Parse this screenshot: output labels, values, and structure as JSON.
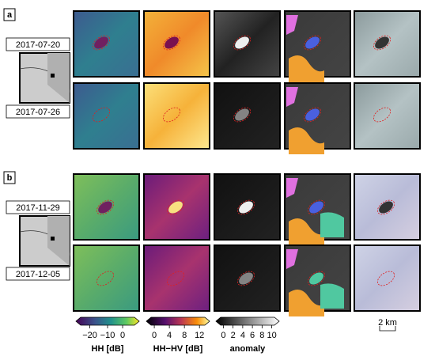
{
  "panels": [
    {
      "label": "a",
      "dates": [
        "2017-07-20",
        "2017-07-26"
      ]
    },
    {
      "label": "b",
      "dates": [
        "2017-11-29",
        "2017-12-05"
      ]
    }
  ],
  "colorbars": [
    {
      "label": "HH [dB]",
      "ticks": [
        "−20",
        "−10",
        "0"
      ]
    },
    {
      "label": "HH−HV [dB]",
      "ticks": [
        "0",
        "4",
        "8",
        "12"
      ]
    },
    {
      "label": "anomaly",
      "ticks": [
        "0",
        "2",
        "4",
        "6",
        "8",
        "10"
      ]
    }
  ],
  "scale_bar": "2 km"
}
